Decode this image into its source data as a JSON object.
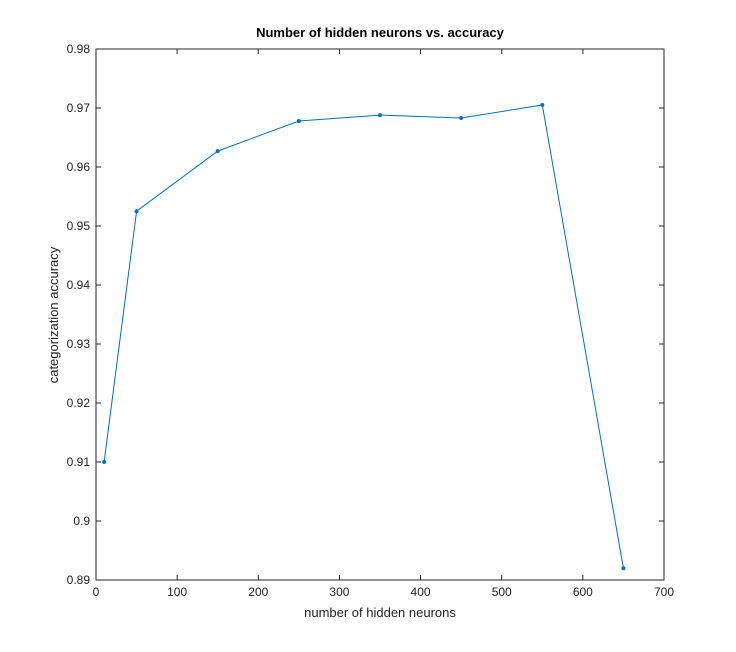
{
  "chart_data": {
    "type": "line",
    "title": "Number of hidden neurons vs. accuracy",
    "xlabel": "number of hidden neurons",
    "ylabel": "categorization accuracy",
    "xlim": [
      0,
      700
    ],
    "ylim": [
      0.89,
      0.98
    ],
    "x_ticks": [
      "0",
      "100",
      "200",
      "300",
      "400",
      "500",
      "600",
      "700"
    ],
    "y_ticks": [
      "0.89",
      "0.9",
      "0.91",
      "0.92",
      "0.93",
      "0.94",
      "0.95",
      "0.96",
      "0.97",
      "0.98"
    ],
    "grid": false,
    "legend": "none",
    "series": [
      {
        "x": [
          10,
          50,
          150,
          250,
          350,
          450,
          550,
          650
        ],
        "y": [
          0.91,
          0.9525,
          0.9627,
          0.9678,
          0.9688,
          0.9683,
          0.9705,
          0.892
        ],
        "color": "#0072bd",
        "marker": "point"
      }
    ]
  }
}
